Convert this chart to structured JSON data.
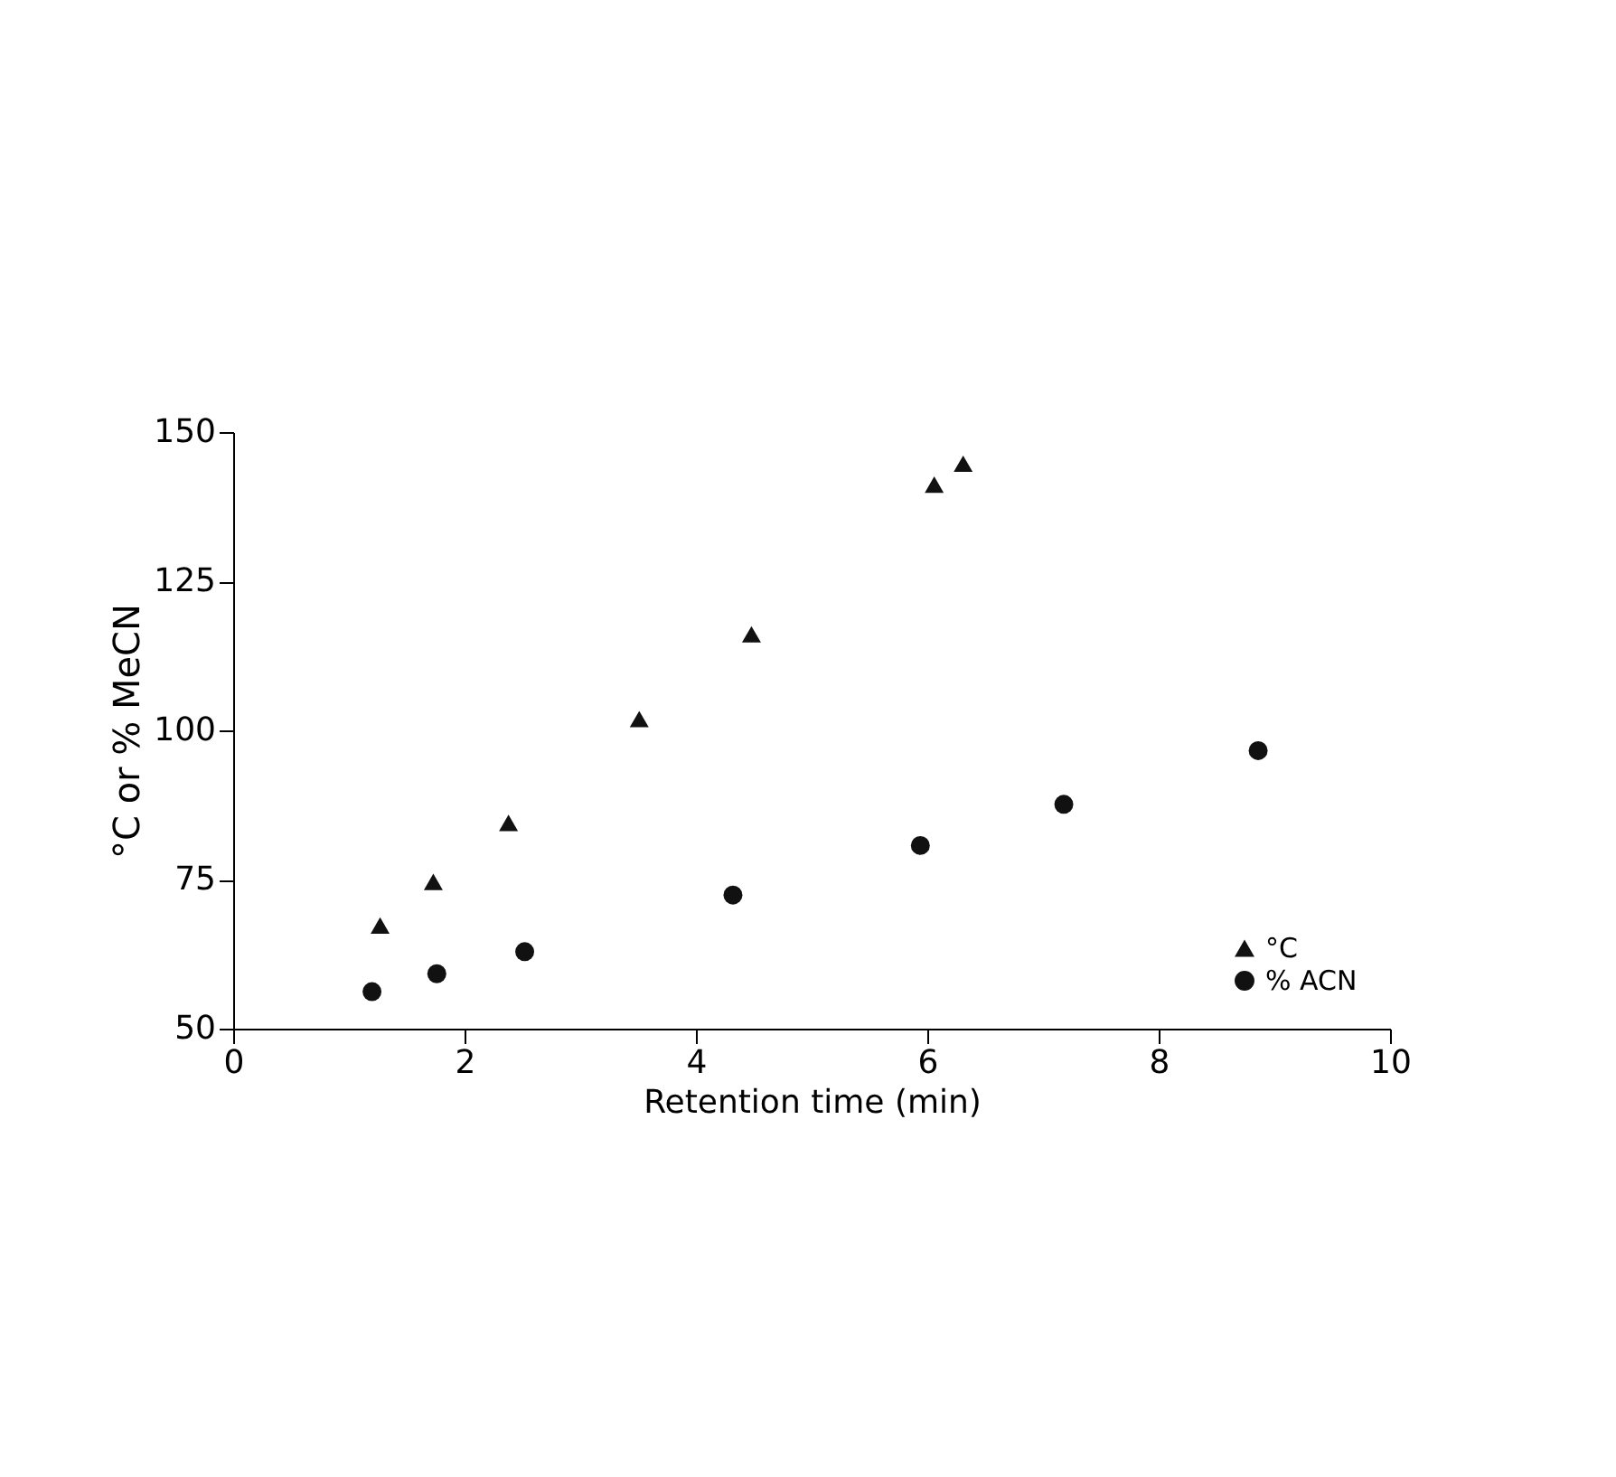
{
  "chart_data": {
    "type": "scatter",
    "xlabel": "Retention time (min)",
    "ylabel": "°C or % MeCN",
    "xlim": [
      0,
      10
    ],
    "xticks": [
      0,
      2,
      4,
      6,
      8,
      10
    ],
    "ylim": [
      50,
      150
    ],
    "yticks": [
      50,
      75,
      100,
      125,
      150
    ],
    "grid": false,
    "legend": "bottom right",
    "series": [
      {
        "name": "°C",
        "color": "#111111",
        "marker": "triangle",
        "x": [
          1.27,
          1.73,
          2.38,
          3.51,
          4.48,
          6.06,
          6.31
        ],
        "values": [
          67.3,
          74.6,
          84.5,
          101.9,
          116.1,
          141.2,
          144.7
        ]
      },
      {
        "name": "% ACN",
        "color": "#111111",
        "marker": "circle",
        "x": [
          1.2,
          1.76,
          2.52,
          4.32,
          5.94,
          7.18,
          8.86
        ],
        "values": [
          56.2,
          59.2,
          62.9,
          72.4,
          80.7,
          87.6,
          96.6
        ]
      }
    ]
  }
}
